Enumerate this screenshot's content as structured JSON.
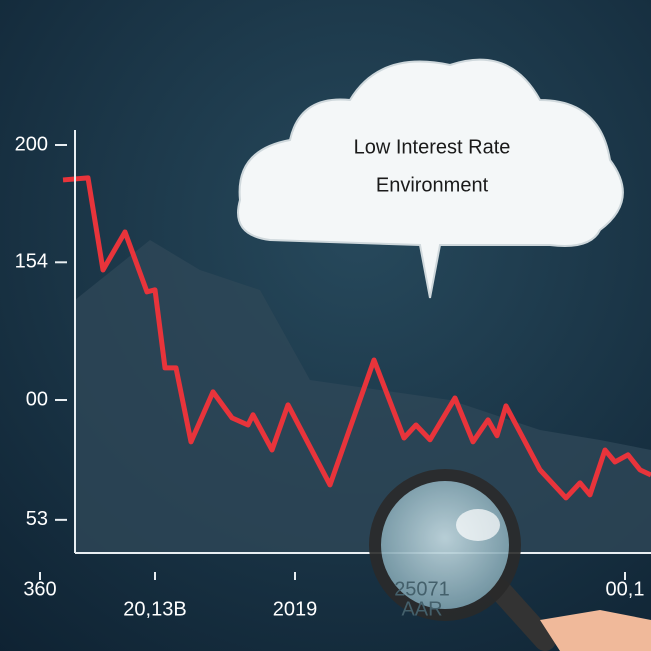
{
  "chart_data": {
    "type": "line",
    "annotation": [
      "Low Interest Rate",
      "Environment"
    ],
    "lens_text": [
      "25071",
      "AAR"
    ],
    "x": [
      0,
      2.5,
      4,
      6.2,
      8.4,
      9.2,
      10.2,
      11.3,
      12.8,
      15,
      16.9,
      18.5,
      19,
      20.9,
      22.5,
      26.7,
      31.1,
      34.1,
      35.3,
      36.7,
      39.2,
      41,
      42.5,
      43.4,
      44.3,
      47.7,
      50.3,
      51.7,
      52.7,
      54.2,
      55.2,
      56.5,
      57.7,
      58.8
    ],
    "series": [
      {
        "color": "#e8343b",
        "values": [
          186.3,
          187.1,
          151,
          165.9,
          142.4,
          143.2,
          112.6,
          112.6,
          83.6,
          103.2,
          93,
          90.2,
          94.2,
          80.4,
          98.1,
          66.7,
          115.7,
          85.1,
          90.2,
          84.4,
          100.8,
          83.6,
          92.2,
          86,
          97.7,
          72.6,
          61.6,
          67.5,
          62.8,
          80.4,
          75.7,
          78.5,
          72.6,
          70.6
        ]
      }
    ],
    "xlim": [
      0,
      58.8
    ],
    "xticks": [
      {
        "value": -2.3,
        "label": "360"
      },
      {
        "value": 9.2,
        "label": "20,13B"
      },
      {
        "value": 23.2,
        "label": "2019"
      },
      {
        "value": 56.2,
        "label": "00,1"
      }
    ],
    "ylim": [
      40,
      200
    ],
    "yticks": [
      200,
      154,
      {
        "value": 100,
        "label": "00"
      },
      53
    ]
  }
}
